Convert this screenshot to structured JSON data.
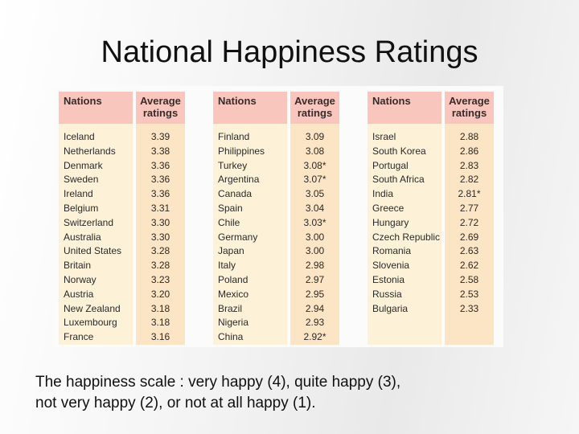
{
  "title": "National Happiness Ratings",
  "header": {
    "nations": "Nations",
    "ratings": "Average ratings"
  },
  "columns": [
    {
      "rows": [
        {
          "nation": "Iceland",
          "rating": "3.39"
        },
        {
          "nation": "Netherlands",
          "rating": "3.38"
        },
        {
          "nation": "Denmark",
          "rating": "3.36"
        },
        {
          "nation": "Sweden",
          "rating": "3.36"
        },
        {
          "nation": "Ireland",
          "rating": "3.36"
        },
        {
          "nation": "Belgium",
          "rating": "3.31"
        },
        {
          "nation": "Switzerland",
          "rating": "3.30"
        },
        {
          "nation": "Australia",
          "rating": "3.30"
        },
        {
          "nation": "United States",
          "rating": "3.28"
        },
        {
          "nation": "Britain",
          "rating": "3.28"
        },
        {
          "nation": "Norway",
          "rating": "3.23"
        },
        {
          "nation": "Austria",
          "rating": "3.20"
        },
        {
          "nation": "New Zealand",
          "rating": "3.18"
        },
        {
          "nation": "Luxembourg",
          "rating": "3.18"
        },
        {
          "nation": "France",
          "rating": "3.16"
        }
      ]
    },
    {
      "rows": [
        {
          "nation": "Finland",
          "rating": "3.09"
        },
        {
          "nation": "Philippines",
          "rating": "3.08"
        },
        {
          "nation": "Turkey",
          "rating": "3.08*"
        },
        {
          "nation": "Argentina",
          "rating": "3.07*"
        },
        {
          "nation": "Canada",
          "rating": "3.05"
        },
        {
          "nation": "Spain",
          "rating": "3.04"
        },
        {
          "nation": "Chile",
          "rating": "3.03*"
        },
        {
          "nation": "Germany",
          "rating": "3.00"
        },
        {
          "nation": "Japan",
          "rating": "3.00"
        },
        {
          "nation": "Italy",
          "rating": "2.98"
        },
        {
          "nation": "Poland",
          "rating": "2.97"
        },
        {
          "nation": "Mexico",
          "rating": "2.95"
        },
        {
          "nation": "Brazil",
          "rating": "2.94"
        },
        {
          "nation": "Nigeria",
          "rating": "2.93"
        },
        {
          "nation": "China",
          "rating": "2.92*"
        }
      ]
    },
    {
      "rows": [
        {
          "nation": "Israel",
          "rating": "2.88"
        },
        {
          "nation": "South Korea",
          "rating": "2.86"
        },
        {
          "nation": "Portugal",
          "rating": "2.83"
        },
        {
          "nation": "South Africa",
          "rating": "2.82"
        },
        {
          "nation": "India",
          "rating": "2.81*"
        },
        {
          "nation": "Greece",
          "rating": "2.77"
        },
        {
          "nation": "Hungary",
          "rating": "2.72"
        },
        {
          "nation": "Czech Republic",
          "rating": "2.69"
        },
        {
          "nation": "Romania",
          "rating": "2.63"
        },
        {
          "nation": "Slovenia",
          "rating": "2.62"
        },
        {
          "nation": "Estonia",
          "rating": "2.58"
        },
        {
          "nation": "Russia",
          "rating": "2.53"
        },
        {
          "nation": "Bulgaria",
          "rating": "2.33"
        },
        {
          "nation": "",
          "rating": ""
        },
        {
          "nation": "",
          "rating": ""
        }
      ]
    }
  ],
  "caption": {
    "line1": "The happiness scale : very happy (4), quite happy (3),",
    "line2": "not very happy (2), or not at all happy (1)."
  },
  "colors": {
    "header_bg": "#f9c6bd",
    "nation_bg": "#fdf2d8",
    "rating_bg": "#fbe5c5"
  }
}
